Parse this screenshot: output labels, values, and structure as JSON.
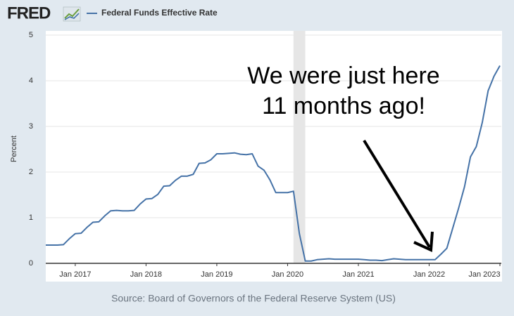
{
  "logo": "FRED",
  "chart_data": {
    "type": "line",
    "y_label": "Percent",
    "source": "Source: Board of Governors of the Federal Reserve System (US)",
    "annotation": [
      "We were just here",
      "11 months ago!"
    ],
    "recession": [
      "2020-02",
      "2020-04"
    ],
    "x": [
      "2016-08",
      "2016-09",
      "2016-10",
      "2016-11",
      "2016-12",
      "2017-01",
      "2017-02",
      "2017-03",
      "2017-04",
      "2017-05",
      "2017-06",
      "2017-07",
      "2017-08",
      "2017-09",
      "2017-10",
      "2017-11",
      "2017-12",
      "2018-01",
      "2018-02",
      "2018-03",
      "2018-04",
      "2018-05",
      "2018-06",
      "2018-07",
      "2018-08",
      "2018-09",
      "2018-10",
      "2018-11",
      "2018-12",
      "2019-01",
      "2019-02",
      "2019-03",
      "2019-04",
      "2019-05",
      "2019-06",
      "2019-07",
      "2019-08",
      "2019-09",
      "2019-10",
      "2019-11",
      "2019-12",
      "2020-01",
      "2020-02",
      "2020-03",
      "2020-04",
      "2020-05",
      "2020-06",
      "2020-07",
      "2020-08",
      "2020-09",
      "2020-10",
      "2020-11",
      "2020-12",
      "2021-01",
      "2021-02",
      "2021-03",
      "2021-04",
      "2021-05",
      "2021-06",
      "2021-07",
      "2021-08",
      "2021-09",
      "2021-10",
      "2021-11",
      "2021-12",
      "2022-01",
      "2022-02",
      "2022-03",
      "2022-04",
      "2022-05",
      "2022-06",
      "2022-07",
      "2022-08",
      "2022-09",
      "2022-10",
      "2022-11",
      "2022-12",
      "2023-01"
    ],
    "series": [
      {
        "name": "Federal Funds Effective Rate",
        "color": "#4572a7",
        "values": [
          0.4,
          0.4,
          0.4,
          0.41,
          0.54,
          0.65,
          0.66,
          0.79,
          0.9,
          0.91,
          1.04,
          1.15,
          1.16,
          1.15,
          1.15,
          1.16,
          1.3,
          1.41,
          1.42,
          1.51,
          1.69,
          1.7,
          1.82,
          1.91,
          1.91,
          1.95,
          2.19,
          2.2,
          2.27,
          2.4,
          2.4,
          2.41,
          2.42,
          2.39,
          2.38,
          2.4,
          2.13,
          2.04,
          1.83,
          1.55,
          1.55,
          1.55,
          1.58,
          0.65,
          0.05,
          0.05,
          0.08,
          0.09,
          0.1,
          0.09,
          0.09,
          0.09,
          0.09,
          0.09,
          0.08,
          0.07,
          0.07,
          0.06,
          0.08,
          0.1,
          0.09,
          0.08,
          0.08,
          0.08,
          0.08,
          0.08,
          0.08,
          0.2,
          0.33,
          0.77,
          1.21,
          1.68,
          2.33,
          2.56,
          3.08,
          3.78,
          4.1,
          4.33
        ]
      }
    ],
    "xlim": [
      "2016-08",
      "2023-01"
    ],
    "xticks": [
      {
        "value": "2017-01",
        "label": "Jan 2017"
      },
      {
        "value": "2018-01",
        "label": "Jan 2018"
      },
      {
        "value": "2019-01",
        "label": "Jan 2019"
      },
      {
        "value": "2020-01",
        "label": "Jan 2020"
      },
      {
        "value": "2021-01",
        "label": "Jan 2021"
      },
      {
        "value": "2022-01",
        "label": "Jan 2022"
      },
      {
        "value": "2023-01",
        "label": "Jan 2023"
      }
    ],
    "ylim": [
      0,
      5
    ],
    "yticks": [
      0,
      1,
      2,
      3,
      4,
      5
    ],
    "grid": true
  }
}
